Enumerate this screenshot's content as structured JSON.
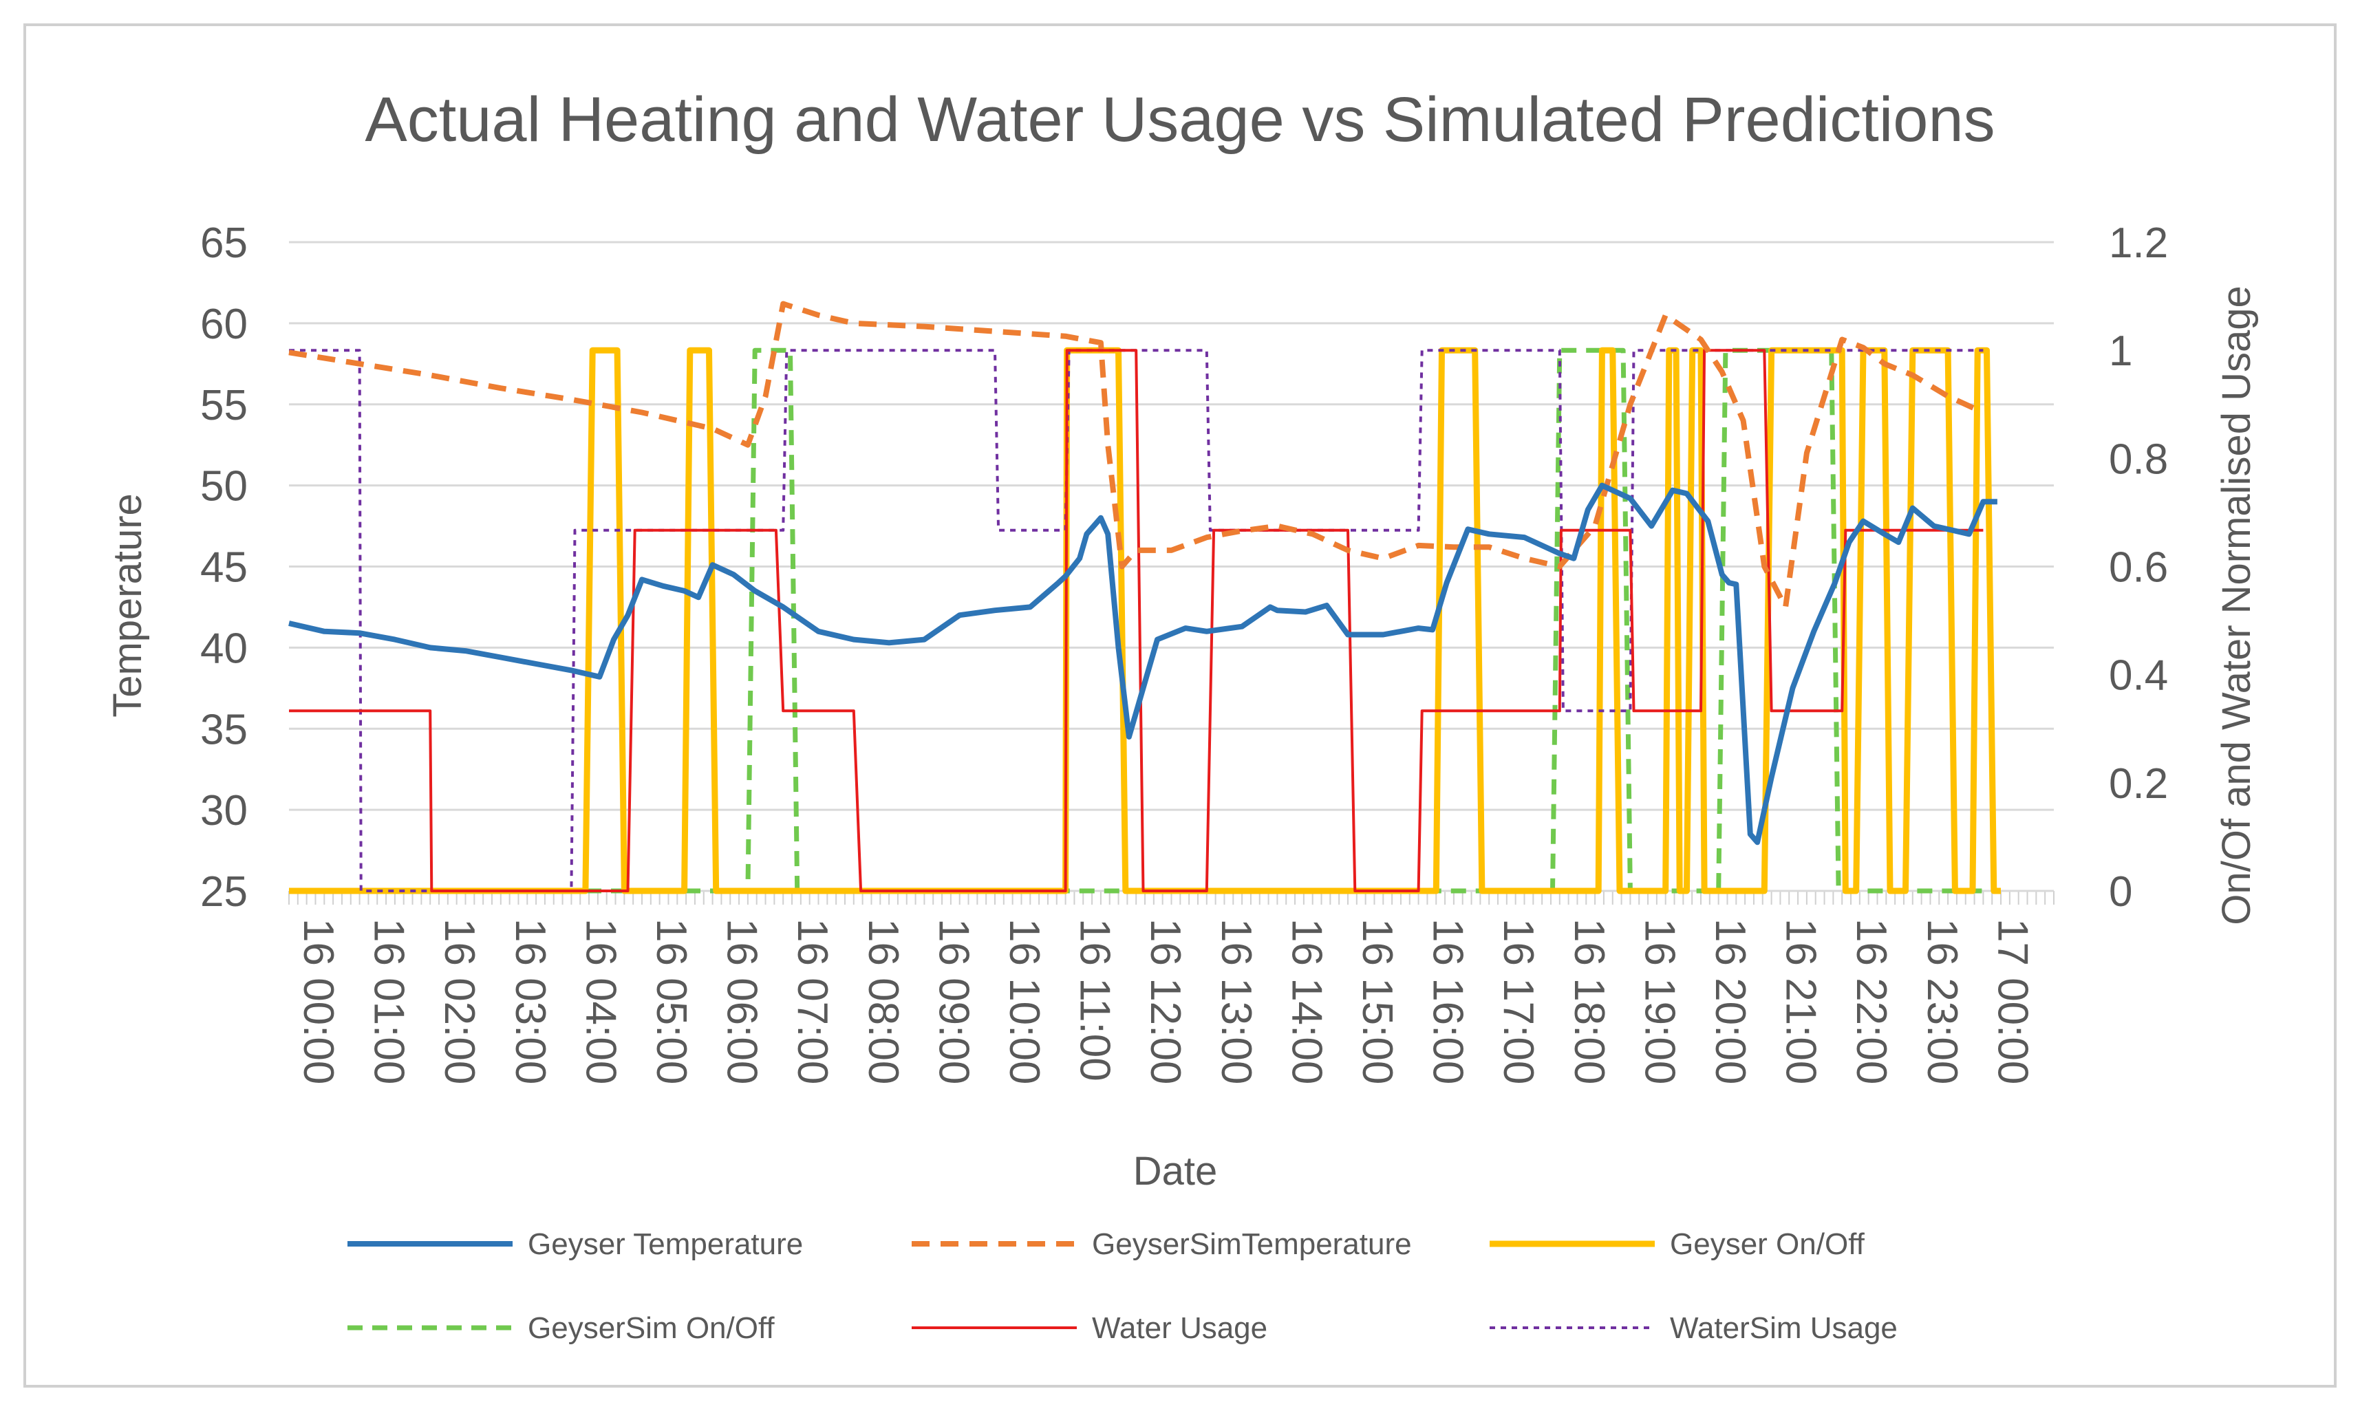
{
  "chart_data": {
    "type": "line",
    "title": "Actual Heating and Water Usage vs Simulated Predictions",
    "xlabel": "Date",
    "ylabel": "Temperature",
    "y2label": "On/Of and  Water Normalised Usage",
    "ylim": [
      25,
      65
    ],
    "y2lim": [
      0,
      1.2
    ],
    "yticks": [
      "25",
      "30",
      "35",
      "40",
      "45",
      "50",
      "55",
      "60",
      "65"
    ],
    "y2ticks": [
      "0",
      "0.2",
      "0.4",
      "0.6",
      "0.8",
      "1",
      "1.2"
    ],
    "x_range_hours": [
      0,
      25
    ],
    "x_tick_labels": [
      "16 00:00",
      "16 01:00",
      "16 02:00",
      "16 03:00",
      "16 04:00",
      "16 05:00",
      "16 06:00",
      "16 07:00",
      "16 08:00",
      "16 09:00",
      "16 10:00",
      "16 11:00",
      "16 12:00",
      "16 13:00",
      "16 14:00",
      "16 15:00",
      "16 16:00",
      "16 17:00",
      "16 18:00",
      "16 19:00",
      "16 20:00",
      "16 21:00",
      "16 22:00",
      "16 23:00",
      "17 00:00"
    ],
    "series": [
      {
        "name": "Geyser Temperature",
        "axis": "left",
        "color": "#2e75b6",
        "style": "solid",
        "x": [
          0,
          0.5,
          1,
          1.5,
          2,
          2.5,
          3,
          3.5,
          4,
          4.2,
          4.4,
          4.6,
          4.8,
          5,
          5.3,
          5.6,
          5.8,
          6,
          6.3,
          6.6,
          7,
          7.5,
          8,
          8.5,
          9,
          9.5,
          10,
          10.5,
          10.9,
          11,
          11.2,
          11.3,
          11.5,
          11.6,
          11.75,
          11.9,
          12,
          12.3,
          12.7,
          13,
          13.5,
          13.9,
          14,
          14.4,
          14.7,
          15,
          15.5,
          16,
          16.2,
          16.4,
          16.7,
          17,
          17.5,
          18,
          18.2,
          18.4,
          18.6,
          19,
          19.3,
          19.6,
          19.8,
          20.1,
          20.3,
          20.4,
          20.5,
          20.7,
          20.8,
          21,
          21.3,
          21.6,
          21.9,
          22.1,
          22.3,
          22.6,
          22.8,
          23,
          23.3,
          23.6,
          23.8,
          24,
          24.2
        ],
        "values": [
          41.5,
          41,
          40.9,
          40.5,
          40,
          39.8,
          39.4,
          39,
          38.6,
          38.4,
          38.2,
          40.5,
          42,
          44.2,
          43.8,
          43.5,
          43.1,
          45.1,
          44.5,
          43.5,
          42.5,
          41,
          40.5,
          40.3,
          40.5,
          42,
          42.3,
          42.5,
          44,
          44.4,
          45.5,
          47,
          48,
          47,
          40,
          34.5,
          36,
          40.5,
          41.2,
          41,
          41.3,
          42.5,
          42.3,
          42.2,
          42.6,
          40.8,
          40.8,
          41.2,
          41.1,
          44,
          47.3,
          47,
          46.8,
          45.8,
          45.5,
          48.5,
          50,
          49.2,
          47.5,
          49.7,
          49.5,
          47.8,
          44.5,
          44,
          43.9,
          28.5,
          28,
          32,
          37.5,
          41,
          44,
          46.5,
          47.8,
          47,
          46.5,
          48.6,
          47.5,
          47.2,
          47,
          49,
          49
        ]
      },
      {
        "name": "GeyserSimTemperature",
        "axis": "left",
        "color": "#ed7d31",
        "style": "dash",
        "x": [
          0,
          1,
          2,
          3,
          4,
          5,
          6,
          6.5,
          6.75,
          7,
          7.5,
          8,
          9,
          10,
          11,
          11.5,
          11.6,
          11.8,
          12,
          12.5,
          13,
          13.5,
          14,
          14.5,
          15,
          15.5,
          16,
          16.5,
          17,
          17.5,
          18,
          18.5,
          19,
          19.5,
          20,
          20.3,
          20.6,
          20.9,
          21.2,
          21.5,
          22,
          22.3,
          22.6,
          23,
          23.5,
          24
        ],
        "values": [
          58.2,
          57.5,
          56.8,
          56,
          55.3,
          54.5,
          53.5,
          52.5,
          55.5,
          61.2,
          60.5,
          60,
          59.8,
          59.5,
          59.2,
          58.8,
          52.5,
          45,
          46,
          46,
          46.8,
          47.2,
          47.5,
          47,
          46,
          45.5,
          46.3,
          46.2,
          46.2,
          45.5,
          45,
          47.5,
          55,
          60.5,
          59,
          57,
          54,
          45,
          42.5,
          52,
          59,
          58.5,
          57.5,
          56.8,
          55.5,
          54.5
        ]
      },
      {
        "name": "Geyser On/Off",
        "axis": "right",
        "color": "#ffc000",
        "style": "solid",
        "x": [
          0,
          4.2,
          4.3,
          4.65,
          4.75,
          5.6,
          5.68,
          5.95,
          6.05,
          11,
          11.02,
          11.75,
          11.85,
          16.25,
          16.33,
          16.8,
          16.9,
          18.55,
          18.6,
          18.75,
          18.85,
          19.5,
          19.55,
          19.65,
          19.7,
          19.8,
          19.88,
          20.0,
          20.05,
          20.9,
          21.0,
          22.0,
          22.05,
          22.2,
          22.3,
          22.6,
          22.68,
          22.9,
          23.0,
          23.5,
          23.6,
          23.85,
          23.92,
          24.05,
          24.15,
          24.25
        ],
        "values": [
          0,
          0,
          1,
          1,
          0,
          0,
          1,
          1,
          0,
          0,
          1,
          1,
          0,
          0,
          1,
          1,
          0,
          0,
          1,
          1,
          0,
          0,
          1,
          1,
          0,
          0,
          1,
          1,
          0,
          0,
          1,
          1,
          0,
          0,
          1,
          1,
          0,
          0,
          1,
          1,
          0,
          0,
          1,
          1,
          0,
          0
        ]
      },
      {
        "name": "GeyserSim On/Off",
        "axis": "right",
        "color": "#70c94e",
        "style": "dash",
        "x": [
          0,
          6.5,
          6.6,
          7.1,
          7.2,
          17.9,
          18,
          18.9,
          19,
          20.25,
          20.35,
          21.85,
          21.95,
          24.2
        ],
        "values": [
          0,
          0,
          1,
          1,
          0,
          0,
          1,
          1,
          0,
          0,
          1,
          1,
          0,
          0
        ]
      },
      {
        "name": "Water Usage",
        "axis": "right",
        "color": "#e81c1c",
        "style": "solid",
        "x": [
          0,
          2,
          2.02,
          4.8,
          4.9,
          6.9,
          7,
          8,
          8.1,
          11,
          11.02,
          12,
          12.1,
          13,
          13.1,
          15,
          15.1,
          16,
          16.05,
          18,
          18.02,
          19,
          19.05,
          20,
          20.05,
          20.9,
          21,
          22,
          22.05,
          24
        ],
        "values": [
          0.333,
          0.333,
          0,
          0,
          0.667,
          0.667,
          0.333,
          0.333,
          0,
          0,
          1,
          1,
          0,
          0,
          0.667,
          0.667,
          0,
          0,
          0.333,
          0.333,
          0.667,
          0.667,
          0.333,
          0.333,
          1,
          1,
          0.333,
          0.333,
          0.667,
          0.667
        ]
      },
      {
        "name": "WaterSim Usage",
        "axis": "right",
        "color": "#7030a0",
        "style": "dot",
        "x": [
          0,
          1,
          1.02,
          4,
          4.05,
          7,
          7.05,
          10,
          10.05,
          11,
          11.05,
          13,
          13.05,
          16,
          16.05,
          18,
          18.05,
          19,
          19.05,
          24
        ],
        "values": [
          1,
          1,
          0,
          0,
          0.667,
          0.667,
          1,
          1,
          0.667,
          0.667,
          1,
          1,
          0.667,
          0.667,
          1,
          1,
          0.333,
          0.333,
          1,
          1
        ]
      }
    ],
    "legend_position": "bottom"
  }
}
